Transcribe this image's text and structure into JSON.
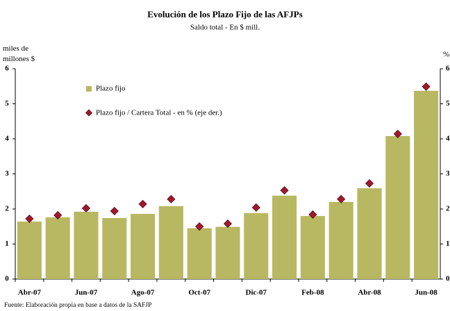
{
  "chart_data": {
    "type": "bar_line",
    "title": "Evolución de los Plazo Fijo de las AFJPs",
    "subtitle": "Saldo total - En $ mill.",
    "y_label": "miles de millones $",
    "y2_label": "%",
    "source": "Fuente: Elaboración propia en base a datos de la SAFJP",
    "categories": [
      "Abr-07",
      null,
      "Jun-07",
      null,
      "Ago-07",
      null,
      "Oct-07",
      null,
      "Dic-07",
      null,
      "Feb-08",
      null,
      "Abr-08",
      null,
      "Jun-08"
    ],
    "series": [
      {
        "name": "Plazo fijo",
        "color": "#b8b862",
        "values": [
          1.64,
          1.76,
          1.92,
          1.74,
          1.86,
          2.08,
          1.45,
          1.49,
          1.88,
          2.38,
          1.8,
          2.2,
          2.59,
          4.08,
          5.37
        ]
      },
      {
        "name": "Plazo fijo / Cartera Total - en % (eje der.)",
        "color": "#a0192e",
        "axis": "y2",
        "values": [
          1.72,
          1.82,
          2.02,
          1.94,
          2.14,
          2.28,
          1.5,
          1.58,
          2.04,
          2.53,
          1.84,
          2.28,
          2.73,
          4.14,
          5.49
        ]
      }
    ],
    "ylim": [
      0,
      6
    ],
    "yticks": [
      0,
      1,
      2,
      3,
      4,
      5,
      6
    ],
    "y2lim": [
      0,
      6
    ],
    "y2ticks": [
      0,
      1,
      2,
      3,
      4,
      5,
      6
    ]
  }
}
